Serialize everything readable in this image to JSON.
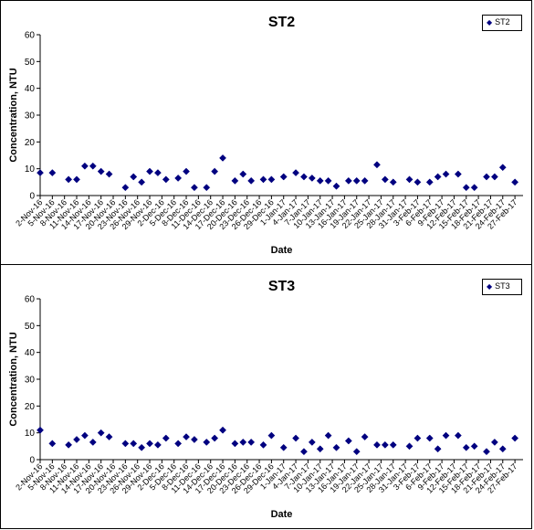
{
  "chart_data": [
    {
      "type": "scatter",
      "title": "ST2",
      "xlabel": "Date",
      "ylabel": "Concentration, NTU",
      "ylim": [
        0,
        60
      ],
      "yticks": [
        0,
        10,
        20,
        30,
        40,
        50,
        60
      ],
      "xlim": [
        "2016-11-02",
        "2017-03-01"
      ],
      "xticklabels": [
        "2-Nov-16",
        "5-Nov-16",
        "8-Nov-16",
        "11-Nov-16",
        "14-Nov-16",
        "17-Nov-16",
        "20-Nov-16",
        "23-Nov-16",
        "26-Nov-16",
        "29-Nov-16",
        "2-Dec-16",
        "5-Dec-16",
        "8-Dec-16",
        "11-Dec-16",
        "14-Dec-16",
        "17-Dec-16",
        "20-Dec-16",
        "23-Dec-16",
        "26-Dec-16",
        "29-Dec-16",
        "1-Jan-17",
        "4-Jan-17",
        "7-Jan-17",
        "10-Jan-17",
        "13-Jan-17",
        "16-Jan-17",
        "19-Jan-17",
        "22-Jan-17",
        "25-Jan-17",
        "28-Jan-17",
        "31-Jan-17",
        "3-Feb-17",
        "6-Feb-17",
        "9-Feb-17",
        "12-Feb-17",
        "15-Feb-17",
        "18-Feb-17",
        "21-Feb-17",
        "24-Feb-17",
        "27-Feb-17"
      ],
      "grid": false,
      "legend_position": "top-right",
      "series": [
        {
          "name": "ST2",
          "color": "#000080",
          "x": [
            "2016-11-02",
            "2016-11-05",
            "2016-11-09",
            "2016-11-11",
            "2016-11-13",
            "2016-11-15",
            "2016-11-17",
            "2016-11-19",
            "2016-11-23",
            "2016-11-25",
            "2016-11-27",
            "2016-11-29",
            "2016-12-01",
            "2016-12-03",
            "2016-12-06",
            "2016-12-08",
            "2016-12-10",
            "2016-12-13",
            "2016-12-15",
            "2016-12-17",
            "2016-12-20",
            "2016-12-22",
            "2016-12-24",
            "2016-12-27",
            "2016-12-29",
            "2017-01-01",
            "2017-01-04",
            "2017-01-06",
            "2017-01-08",
            "2017-01-10",
            "2017-01-12",
            "2017-01-14",
            "2017-01-17",
            "2017-01-19",
            "2017-01-21",
            "2017-01-24",
            "2017-01-26",
            "2017-01-28",
            "2017-02-01",
            "2017-02-03",
            "2017-02-06",
            "2017-02-08",
            "2017-02-10",
            "2017-02-13",
            "2017-02-15",
            "2017-02-17",
            "2017-02-20",
            "2017-02-22",
            "2017-02-24",
            "2017-02-27"
          ],
          "y": [
            8.5,
            8.5,
            6,
            6,
            11,
            11,
            9,
            8,
            3,
            7,
            5,
            9,
            8.5,
            6,
            6.5,
            9,
            3,
            3,
            9,
            14,
            5.5,
            8,
            5.5,
            6,
            6,
            7,
            8.5,
            7,
            6.5,
            5.5,
            5.5,
            3.5,
            5.5,
            5.5,
            5.5,
            11.5,
            6,
            5,
            6,
            5,
            5,
            7,
            8,
            8,
            3,
            3,
            7,
            7,
            10.5,
            5
          ]
        }
      ]
    },
    {
      "type": "scatter",
      "title": "ST3",
      "xlabel": "Date",
      "ylabel": "Concentration, NTU",
      "ylim": [
        0,
        60
      ],
      "yticks": [
        0,
        10,
        20,
        30,
        40,
        50,
        60
      ],
      "xlim": [
        "2016-11-02",
        "2017-03-01"
      ],
      "xticklabels": [
        "2-Nov-16",
        "5-Nov-16",
        "8-Nov-16",
        "11-Nov-16",
        "14-Nov-16",
        "17-Nov-16",
        "20-Nov-16",
        "23-Nov-16",
        "26-Nov-16",
        "29-Nov-16",
        "2-Dec-16",
        "5-Dec-16",
        "8-Dec-16",
        "11-Dec-16",
        "14-Dec-16",
        "17-Dec-16",
        "20-Dec-16",
        "23-Dec-16",
        "26-Dec-16",
        "29-Dec-16",
        "1-Jan-17",
        "4-Jan-17",
        "7-Jan-17",
        "10-Jan-17",
        "13-Jan-17",
        "16-Jan-17",
        "19-Jan-17",
        "22-Jan-17",
        "25-Jan-17",
        "28-Jan-17",
        "31-Jan-17",
        "3-Feb-17",
        "6-Feb-17",
        "9-Feb-17",
        "12-Feb-17",
        "15-Feb-17",
        "18-Feb-17",
        "21-Feb-17",
        "24-Feb-17",
        "27-Feb-17"
      ],
      "grid": false,
      "legend_position": "top-right",
      "series": [
        {
          "name": "ST3",
          "color": "#000080",
          "x": [
            "2016-11-02",
            "2016-11-05",
            "2016-11-09",
            "2016-11-11",
            "2016-11-13",
            "2016-11-15",
            "2016-11-17",
            "2016-11-19",
            "2016-11-23",
            "2016-11-25",
            "2016-11-27",
            "2016-11-29",
            "2016-12-01",
            "2016-12-03",
            "2016-12-06",
            "2016-12-08",
            "2016-12-10",
            "2016-12-13",
            "2016-12-15",
            "2016-12-17",
            "2016-12-20",
            "2016-12-22",
            "2016-12-24",
            "2016-12-27",
            "2016-12-29",
            "2017-01-01",
            "2017-01-04",
            "2017-01-06",
            "2017-01-08",
            "2017-01-10",
            "2017-01-12",
            "2017-01-14",
            "2017-01-17",
            "2017-01-19",
            "2017-01-21",
            "2017-01-24",
            "2017-01-26",
            "2017-01-28",
            "2017-02-01",
            "2017-02-03",
            "2017-02-06",
            "2017-02-08",
            "2017-02-10",
            "2017-02-13",
            "2017-02-15",
            "2017-02-17",
            "2017-02-20",
            "2017-02-22",
            "2017-02-24",
            "2017-02-27"
          ],
          "y": [
            11,
            6,
            5.5,
            7.5,
            9,
            6.5,
            10,
            8.5,
            6,
            6,
            4.5,
            6,
            5.5,
            8,
            6,
            8.5,
            7.5,
            6.5,
            8,
            11,
            6,
            6.5,
            6.5,
            5.5,
            9,
            4.5,
            8,
            3,
            6.5,
            4,
            9,
            4.5,
            7,
            3,
            8.5,
            5.5,
            5.5,
            5.5,
            5,
            8,
            8,
            4,
            9,
            9,
            4.5,
            5,
            3,
            6.5,
            4,
            8
          ]
        }
      ]
    }
  ]
}
